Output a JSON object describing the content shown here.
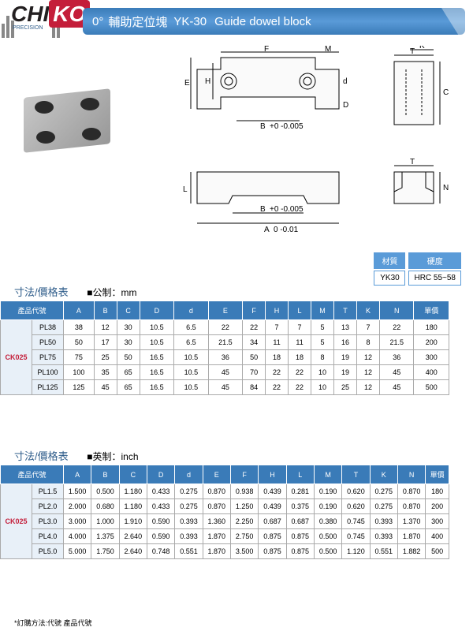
{
  "header": {
    "logo_main1": "CHI",
    "logo_main2": "KO",
    "logo_sub": "PRECISION",
    "title_deg": "0°",
    "title_cn": "輔助定位塊",
    "title_code": "YK-30",
    "title_en": "Guide dowel block"
  },
  "material": {
    "hdr1": "材質",
    "hdr2": "硬度",
    "val1": "YK30",
    "val2": "HRC 55~58"
  },
  "section_mm": {
    "title": "寸法/價格表",
    "unit": "■公制：mm"
  },
  "section_in": {
    "title": "寸法/價格表",
    "unit": "■英制：inch"
  },
  "columns": {
    "prodcode": "產品代號",
    "headers": [
      "A",
      "B",
      "C",
      "D",
      "d",
      "E",
      "F",
      "H",
      "L",
      "M",
      "T",
      "K",
      "N",
      "單價"
    ]
  },
  "group_code": "CK025",
  "table_mm": [
    {
      "pn": "PL38",
      "v": [
        "38",
        "12",
        "30",
        "10.5",
        "6.5",
        "22",
        "22",
        "7",
        "7",
        "5",
        "13",
        "7",
        "22",
        "180"
      ]
    },
    {
      "pn": "PL50",
      "v": [
        "50",
        "17",
        "30",
        "10.5",
        "6.5",
        "21.5",
        "34",
        "11",
        "11",
        "5",
        "16",
        "8",
        "21.5",
        "200"
      ]
    },
    {
      "pn": "PL75",
      "v": [
        "75",
        "25",
        "50",
        "16.5",
        "10.5",
        "36",
        "50",
        "18",
        "18",
        "8",
        "19",
        "12",
        "36",
        "300"
      ]
    },
    {
      "pn": "PL100",
      "v": [
        "100",
        "35",
        "65",
        "16.5",
        "10.5",
        "45",
        "70",
        "22",
        "22",
        "10",
        "19",
        "12",
        "45",
        "400"
      ]
    },
    {
      "pn": "PL125",
      "v": [
        "125",
        "45",
        "65",
        "16.5",
        "10.5",
        "45",
        "84",
        "22",
        "22",
        "10",
        "25",
        "12",
        "45",
        "500"
      ]
    }
  ],
  "table_in": [
    {
      "pn": "PL1.5",
      "v": [
        "1.500",
        "0.500",
        "1.180",
        "0.433",
        "0.275",
        "0.870",
        "0.938",
        "0.439",
        "0.281",
        "0.190",
        "0.620",
        "0.275",
        "0.870",
        "180"
      ]
    },
    {
      "pn": "PL2.0",
      "v": [
        "2.000",
        "0.680",
        "1.180",
        "0.433",
        "0.275",
        "0.870",
        "1.250",
        "0.439",
        "0.375",
        "0.190",
        "0.620",
        "0.275",
        "0.870",
        "200"
      ]
    },
    {
      "pn": "PL3.0",
      "v": [
        "3.000",
        "1.000",
        "1.910",
        "0.590",
        "0.393",
        "1.360",
        "2.250",
        "0.687",
        "0.687",
        "0.380",
        "0.745",
        "0.393",
        "1.370",
        "300"
      ]
    },
    {
      "pn": "PL4.0",
      "v": [
        "4.000",
        "1.375",
        "2.640",
        "0.590",
        "0.393",
        "1.870",
        "2.750",
        "0.875",
        "0.875",
        "0.500",
        "0.745",
        "0.393",
        "1.870",
        "400"
      ]
    },
    {
      "pn": "PL5.0",
      "v": [
        "5.000",
        "1.750",
        "2.640",
        "0.748",
        "0.551",
        "1.870",
        "3.500",
        "0.875",
        "0.875",
        "0.500",
        "1.120",
        "0.551",
        "1.882",
        "500"
      ]
    }
  ],
  "note": "*訂購方法:代號 產品代號",
  "dim_labels": {
    "A": "A",
    "B": "B",
    "C": "C",
    "D": "D",
    "d": "d",
    "E": "E",
    "F": "F",
    "H": "H",
    "L": "L",
    "M": "M",
    "T": "T",
    "K": "K",
    "N": "N",
    "tolA": "0\n-0.01",
    "tolB": "+0\n-0.005"
  },
  "style": {
    "header_grad": [
      "#3a7bb8",
      "#5a9bd8",
      "#3a7bb8"
    ],
    "th_bg": "#3a7bb8",
    "group_bg": "#e8f0f8",
    "accent": "#c41e3a"
  }
}
